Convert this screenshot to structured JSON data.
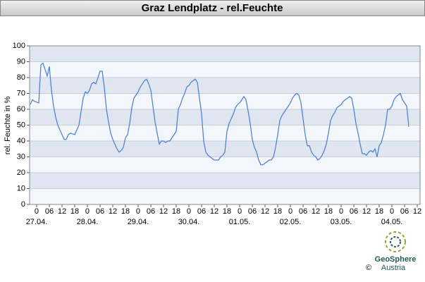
{
  "chart_data": {
    "type": "line",
    "title": "Graz Lendplatz - rel.Feuchte",
    "y_label": "rel. Feuchte in %",
    "x": [
      -3,
      -2,
      -1,
      1,
      2,
      3,
      5,
      6,
      7,
      8,
      9,
      10,
      11,
      12,
      13,
      14,
      15,
      16,
      18,
      19,
      20,
      22,
      23,
      24,
      25,
      26,
      27,
      28,
      29,
      30,
      31,
      32,
      33,
      34,
      35,
      36,
      37,
      38,
      39,
      40,
      41,
      42,
      43,
      44,
      45,
      46,
      47,
      48,
      49,
      50,
      51,
      52,
      53,
      54,
      55,
      56,
      57,
      58,
      59,
      60,
      61,
      62,
      63,
      64,
      65,
      66,
      67,
      68,
      69,
      70,
      71,
      72,
      73,
      74,
      75,
      76,
      77,
      78,
      79,
      80,
      81,
      82,
      83,
      84,
      85,
      86,
      87,
      88,
      89,
      90,
      91,
      92,
      93,
      94,
      95,
      96,
      97,
      98,
      99,
      100,
      101,
      102,
      103,
      104,
      105,
      106,
      107,
      108,
      109,
      110,
      111,
      112,
      113,
      114,
      115,
      116,
      117,
      118,
      119,
      120,
      121,
      122,
      123,
      124,
      125,
      126,
      127,
      128,
      129,
      130,
      131,
      132,
      133,
      134,
      135,
      136,
      137,
      138,
      139,
      140,
      141,
      142,
      143,
      144,
      145,
      146,
      147,
      148,
      149,
      150,
      151,
      152,
      153,
      154,
      155,
      156,
      157,
      158,
      159,
      160,
      161,
      162,
      163,
      164,
      165,
      166,
      167,
      168,
      169,
      170,
      171,
      172,
      173,
      174,
      175,
      176
    ],
    "series": [
      {
        "name": "rel. Feuchte",
        "color": "#4a7bd6",
        "values": [
          63,
          66,
          65,
          64,
          88,
          89,
          81,
          87,
          72,
          62,
          55,
          50,
          47,
          44,
          41,
          41,
          44,
          45,
          44,
          47,
          50,
          67,
          71,
          70,
          72,
          76,
          77,
          76,
          80,
          84,
          84,
          74,
          60,
          52,
          45,
          41,
          38,
          35,
          33,
          34,
          36,
          42,
          44,
          51,
          61,
          67,
          69,
          71,
          74,
          76,
          78,
          79,
          76,
          72,
          62,
          52,
          45,
          38,
          40,
          40,
          39,
          40,
          40,
          42,
          44,
          46,
          60,
          63,
          67,
          70,
          74,
          75,
          77,
          78,
          79,
          77,
          67,
          57,
          40,
          33,
          31,
          30,
          29,
          28,
          28,
          28,
          30,
          31,
          33,
          46,
          51,
          54,
          57,
          61,
          63,
          64,
          66,
          68,
          66,
          59,
          51,
          41,
          36,
          33,
          28,
          25,
          25,
          26,
          27,
          28,
          28,
          30,
          36,
          44,
          53,
          56,
          58,
          60,
          62,
          64,
          67,
          69,
          70,
          69,
          64,
          54,
          44,
          37,
          37,
          33,
          31,
          30,
          28,
          29,
          31,
          34,
          38,
          45,
          53,
          56,
          58,
          61,
          62,
          63,
          65,
          66,
          67,
          68,
          67,
          60,
          51,
          45,
          38,
          32,
          32,
          31,
          33,
          34,
          33,
          35,
          30,
          37,
          39,
          44,
          50,
          60,
          60,
          62,
          66,
          68,
          69,
          70,
          66,
          64,
          62,
          49
        ]
      }
    ],
    "xlim": [
      -3.33,
      181.33
    ],
    "ylim": [
      0,
      100
    ],
    "yticks": [
      0,
      10,
      20,
      30,
      40,
      50,
      60,
      70,
      80,
      90,
      100
    ],
    "xticks": [
      {
        "value": 0,
        "label": "0"
      },
      {
        "value": 6,
        "label": "06"
      },
      {
        "value": 12,
        "label": "12"
      },
      {
        "value": 18,
        "label": "18"
      },
      {
        "value": 24,
        "label": "0"
      },
      {
        "value": 30,
        "label": "06"
      },
      {
        "value": 36,
        "label": "12"
      },
      {
        "value": 42,
        "label": "18"
      },
      {
        "value": 48,
        "label": "0"
      },
      {
        "value": 54,
        "label": "06"
      },
      {
        "value": 60,
        "label": "12"
      },
      {
        "value": 66,
        "label": "18"
      },
      {
        "value": 72,
        "label": "0"
      },
      {
        "value": 78,
        "label": "06"
      },
      {
        "value": 84,
        "label": "12"
      },
      {
        "value": 90,
        "label": "18"
      },
      {
        "value": 96,
        "label": "0"
      },
      {
        "value": 102,
        "label": "06"
      },
      {
        "value": 108,
        "label": "12"
      },
      {
        "value": 114,
        "label": "18"
      },
      {
        "value": 120,
        "label": "0"
      },
      {
        "value": 126,
        "label": "06"
      },
      {
        "value": 132,
        "label": "12"
      },
      {
        "value": 138,
        "label": "18"
      },
      {
        "value": 144,
        "label": "0"
      },
      {
        "value": 150,
        "label": "06"
      },
      {
        "value": 156,
        "label": "12"
      },
      {
        "value": 162,
        "label": "18"
      },
      {
        "value": 168,
        "label": "0"
      },
      {
        "value": 174,
        "label": "06"
      },
      {
        "value": 180,
        "label": "12"
      }
    ],
    "x_date_labels": [
      {
        "value": 0,
        "label": "27.04."
      },
      {
        "value": 24,
        "label": "28.04."
      },
      {
        "value": 48,
        "label": "29.04."
      },
      {
        "value": 72,
        "label": "30.04."
      },
      {
        "value": 96,
        "label": "01.05."
      },
      {
        "value": 120,
        "label": "02.05."
      },
      {
        "value": 144,
        "label": "03.05."
      },
      {
        "value": 168,
        "label": "04.05."
      }
    ]
  },
  "footer": {
    "logo_name": "GeoSphere",
    "logo_sub": "Austria",
    "copyright": "©"
  }
}
